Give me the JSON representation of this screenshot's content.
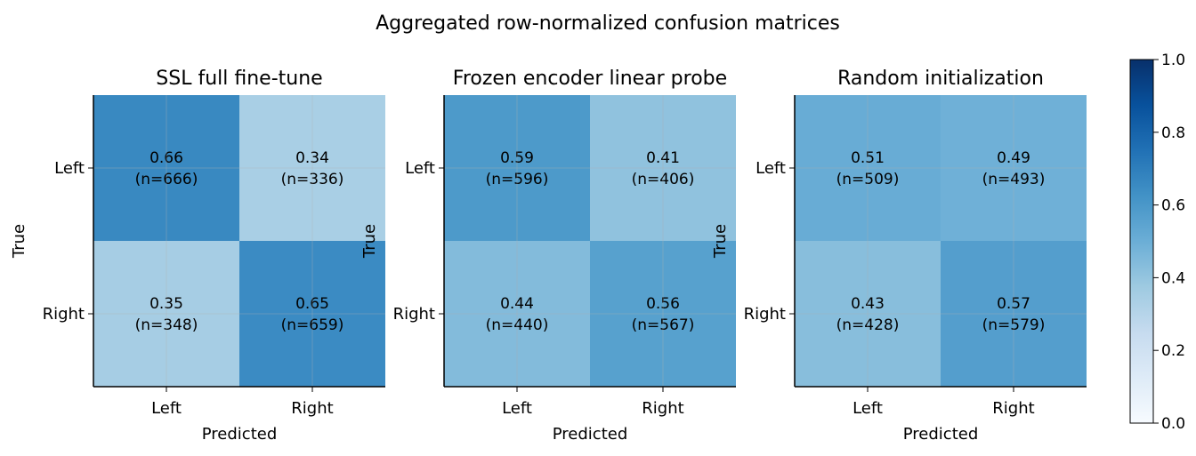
{
  "suptitle": "Aggregated row-normalized confusion matrices",
  "colorbar": {
    "min": 0.0,
    "max": 1.0,
    "ticks": [
      "0.0",
      "0.2",
      "0.4",
      "0.6",
      "0.8",
      "1.0"
    ]
  },
  "chart_data": [
    {
      "type": "heatmap",
      "title": "SSL full fine-tune",
      "xlabel": "Predicted",
      "ylabel": "True",
      "x_categories": [
        "Left",
        "Right"
      ],
      "y_categories": [
        "Left",
        "Right"
      ],
      "values": [
        [
          0.66,
          0.34
        ],
        [
          0.35,
          0.65
        ]
      ],
      "counts": [
        [
          "(n=666)",
          "(n=336)"
        ],
        [
          "(n=348)",
          "(n=659)"
        ]
      ],
      "value_labels": [
        [
          "0.66",
          "0.34"
        ],
        [
          "0.35",
          "0.65"
        ]
      ]
    },
    {
      "type": "heatmap",
      "title": "Frozen encoder linear probe",
      "xlabel": "Predicted",
      "ylabel": "True",
      "x_categories": [
        "Left",
        "Right"
      ],
      "y_categories": [
        "Left",
        "Right"
      ],
      "values": [
        [
          0.59,
          0.41
        ],
        [
          0.44,
          0.56
        ]
      ],
      "counts": [
        [
          "(n=596)",
          "(n=406)"
        ],
        [
          "(n=440)",
          "(n=567)"
        ]
      ],
      "value_labels": [
        [
          "0.59",
          "0.41"
        ],
        [
          "0.44",
          "0.56"
        ]
      ]
    },
    {
      "type": "heatmap",
      "title": "Random initialization",
      "xlabel": "Predicted",
      "ylabel": "True",
      "x_categories": [
        "Left",
        "Right"
      ],
      "y_categories": [
        "Left",
        "Right"
      ],
      "values": [
        [
          0.51,
          0.49
        ],
        [
          0.43,
          0.57
        ]
      ],
      "counts": [
        [
          "(n=509)",
          "(n=493)"
        ],
        [
          "(n=428)",
          "(n=579)"
        ]
      ],
      "value_labels": [
        [
          "0.51",
          "0.49"
        ],
        [
          "0.43",
          "0.57"
        ]
      ]
    }
  ]
}
